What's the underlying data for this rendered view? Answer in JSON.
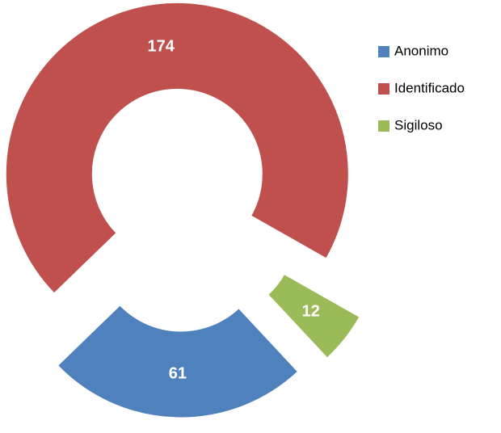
{
  "chart_data": {
    "type": "doughnut",
    "series": [
      {
        "name": "Anonimo",
        "color": "#4f81bd",
        "values": [
          61
        ]
      },
      {
        "name": "Identificado",
        "color": "#c0504d",
        "values": [
          174
        ]
      },
      {
        "name": "Sigiloso",
        "color": "#9bbb59",
        "values": [
          12
        ]
      }
    ],
    "legend": "right",
    "exploded": true
  }
}
